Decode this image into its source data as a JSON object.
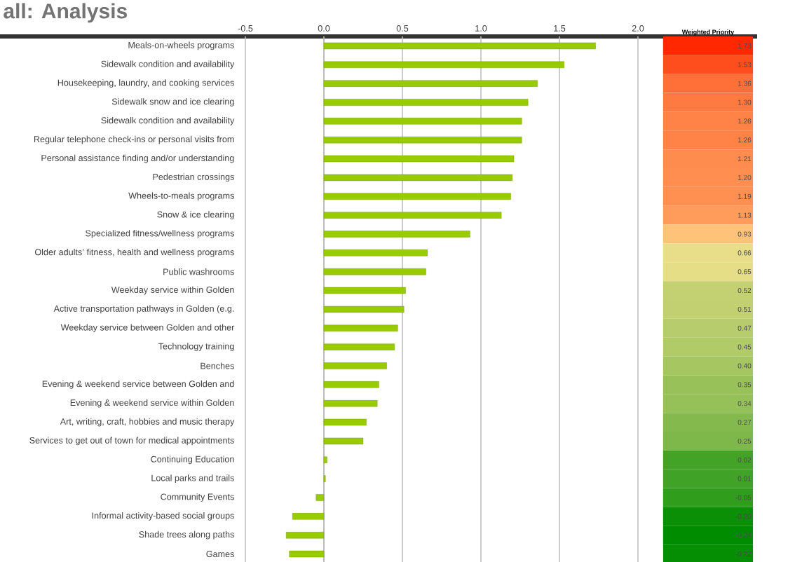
{
  "chart_data": {
    "type": "bar",
    "orientation": "horizontal",
    "title": "**all:** Analysis",
    "annotations": [
      "Weighted Priority"
    ],
    "categories": [
      "Meals-on-wheels programs",
      "Sidewalk condition and availability",
      "Housekeeping, laundry, and cooking services",
      "Sidewalk snow and ice clearing",
      "Sidewalk condition and availability",
      "Regular telephone check-ins or personal visits from",
      "Personal assistance finding and/or understanding",
      "Pedestrian crossings",
      "Wheels-to-meals programs",
      "Snow & ice clearing",
      "Specialized fitness/wellness programs",
      "Older adults’ fitness, health and wellness programs",
      "Public washrooms",
      "Weekday service within Golden",
      "Active transportation pathways in Golden (e.g.",
      "Weekday service between Golden and other",
      "Technology training",
      "Benches",
      "Evening & weekend service between Golden and",
      "Evening & weekend service within Golden",
      "Art, writing, craft, hobbies and music therapy",
      "Services to get out of town for medical appointments",
      "Continuing Education",
      "Local parks and trails",
      "Community Events",
      "Informal activity-based social groups",
      "Shade trees along paths",
      "Games"
    ],
    "values": [
      1.73,
      1.53,
      1.36,
      1.3,
      1.26,
      1.26,
      1.21,
      1.2,
      1.19,
      1.13,
      0.93,
      0.66,
      0.65,
      0.52,
      0.51,
      0.47,
      0.45,
      0.4,
      0.35,
      0.34,
      0.27,
      0.25,
      0.02,
      0.01,
      -0.05,
      -0.2,
      -0.24,
      -0.22
    ],
    "value_labels": [
      "1.73",
      "1.53",
      "1.36",
      "1.30",
      "1.26",
      "1.26",
      "1.21",
      "1.20",
      "1.19",
      "1.13",
      "0.93",
      "0.66",
      "0.65",
      "0.52",
      "0.51",
      "0.47",
      "0.45",
      "0.40",
      "0.35",
      "0.34",
      "0.27",
      "0.25",
      "0.02",
      "0.01",
      "-0.05",
      "-0.20",
      "-0.24",
      "-0.22"
    ],
    "color": "#99cc00",
    "xlim": [
      -0.5,
      2.0
    ],
    "xticks": [
      {
        "value": -0.5,
        "label": "-0.5"
      },
      {
        "value": 0,
        "label": "0.0"
      },
      {
        "value": 0.5,
        "label": "0.5"
      },
      {
        "value": 1.0,
        "label": "1.0"
      },
      {
        "value": 1.5,
        "label": "1.5"
      },
      {
        "value": 2.0,
        "label": "2.0"
      }
    ],
    "grid": "x"
  }
}
